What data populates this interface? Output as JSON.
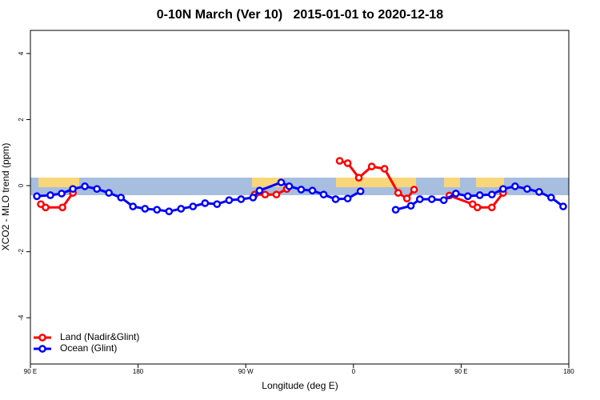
{
  "chart_data": {
    "type": "line",
    "title": "0-10N March (Ver 10)   2015-01-01 to 2020-12-18",
    "x_label": "Longitude (deg E)",
    "y_label": "XCO2 - MLO trend (ppm)",
    "xlim": [
      90,
      540
    ],
    "ylim": [
      -5.4,
      4.7
    ],
    "xticks": [
      {
        "value": 90,
        "label": "90 E"
      },
      180,
      {
        "value": 270,
        "label": "90 W"
      },
      {
        "value": 360,
        "label": "0"
      },
      {
        "value": 450,
        "label": "90 E"
      },
      {
        "value": 540,
        "label": "180"
      }
    ],
    "yticks": [
      -4,
      -2,
      0,
      2,
      4
    ],
    "legend": "bottom-left",
    "series": [
      {
        "name": "Land (Nadir&Glint)",
        "color": "#ff0000",
        "x": [
          98.7,
          102.7,
          116.8,
          125.5,
          null,
          277.5,
          286.2,
          295.6,
          304.3,
          null,
          348.5,
          355.2,
          364.5,
          375.3,
          386.0,
          397.4,
          404.7,
          410.7,
          null,
          440.2,
          459.6,
          463.6,
          475.7,
          485.1
        ],
        "values": [
          -0.56,
          -0.66,
          -0.66,
          -0.22,
          null,
          -0.27,
          -0.27,
          -0.27,
          -0.1,
          null,
          0.75,
          0.68,
          0.24,
          0.58,
          0.51,
          -0.22,
          -0.39,
          -0.12,
          null,
          -0.3,
          -0.56,
          -0.66,
          -0.66,
          -0.22
        ]
      },
      {
        "name": "Ocean (Glint)",
        "color": "#0000ff",
        "x": [
          95.4,
          106.7,
          116.1,
          125.5,
          135.5,
          145.6,
          155.6,
          165.7,
          175.7,
          185.8,
          195.8,
          205.9,
          215.9,
          225.9,
          236.0,
          246.0,
          256.1,
          266.1,
          276.1,
          281.5,
          299.6,
          306.3,
          316.3,
          325.7,
          335.1,
          345.1,
          355.2,
          365.9,
          null,
          395.3,
          408.0,
          415.5,
          425.5,
          435.5,
          445.6,
          455.6,
          465.6,
          475.7,
          485.1,
          495.1,
          505.2,
          515.2,
          525.2,
          535.3
        ],
        "values": [
          -0.32,
          -0.29,
          -0.24,
          -0.1,
          -0.02,
          -0.1,
          -0.22,
          -0.36,
          -0.63,
          -0.7,
          -0.73,
          -0.78,
          -0.7,
          -0.63,
          -0.53,
          -0.56,
          -0.44,
          -0.41,
          -0.36,
          -0.15,
          0.1,
          -0.02,
          -0.12,
          -0.15,
          -0.27,
          -0.41,
          -0.39,
          -0.17,
          null,
          -0.73,
          -0.61,
          -0.41,
          -0.41,
          -0.44,
          -0.24,
          -0.32,
          -0.29,
          -0.27,
          -0.1,
          -0.02,
          -0.1,
          -0.19,
          -0.36,
          -0.63
        ]
      }
    ]
  }
}
